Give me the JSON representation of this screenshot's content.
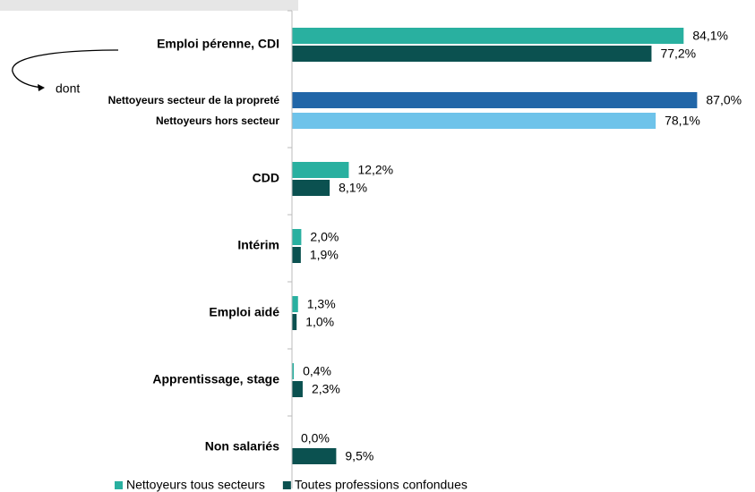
{
  "chart_data": {
    "type": "hbar",
    "categories": [
      "Emploi pérenne, CDI",
      "CDD",
      "Intérim",
      "Emploi aidé",
      "Apprentissage, stage",
      "Non salariés"
    ],
    "series": [
      {
        "name": "Nettoyeurs tous secteurs",
        "color": "#29b0a0",
        "values": [
          84.1,
          12.2,
          2.0,
          1.3,
          0.4,
          0.0
        ],
        "value_labels": [
          "84,1%",
          "12,2%",
          "2,0%",
          "1,3%",
          "0,4%",
          "0,0%"
        ]
      },
      {
        "name": "Toutes professions confondues",
        "color": "#0b5150",
        "values": [
          77.2,
          8.1,
          1.9,
          1.0,
          2.3,
          9.5
        ],
        "value_labels": [
          "77,2%",
          "8,1%",
          "1,9%",
          "1,0%",
          "2,3%",
          "9,5%"
        ]
      }
    ],
    "breakdown": {
      "intro": "dont",
      "items": [
        {
          "name": "Nettoyeurs secteur de la propreté",
          "color": "#2166a8",
          "value": 87.0,
          "value_label": "87,0%"
        },
        {
          "name": "Nettoyeurs hors secteur",
          "color": "#6ec3ea",
          "value": 78.1,
          "value_label": "78,1%"
        }
      ]
    },
    "xlim": [
      0,
      100
    ],
    "legend": "bottom"
  }
}
